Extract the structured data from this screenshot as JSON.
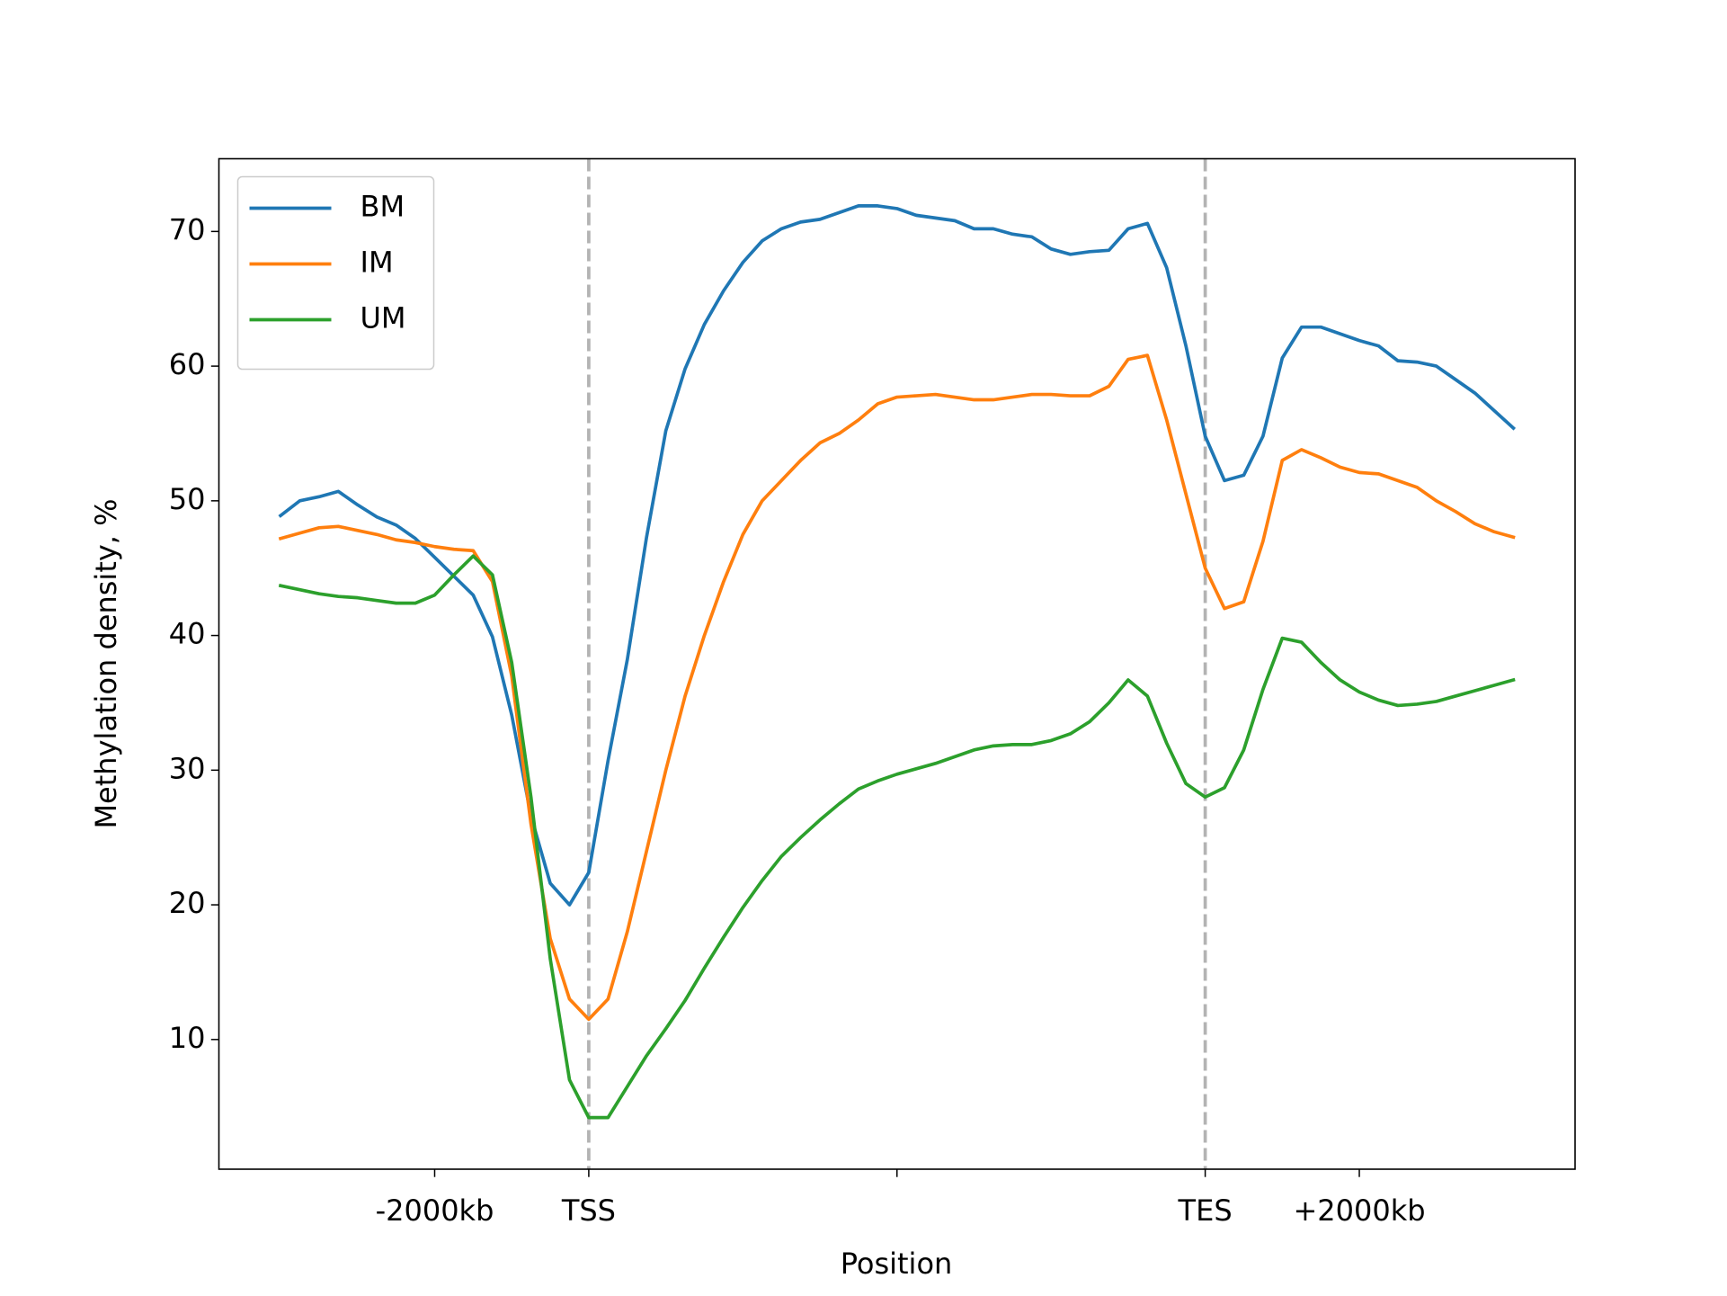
{
  "chart_data": {
    "type": "line",
    "xlabel": "Position",
    "ylabel": "Methylation density, %",
    "x": [
      -2,
      -1.875,
      -1.75,
      -1.625,
      -1.5,
      -1.375,
      -1.25,
      -1.125,
      -1,
      -0.875,
      -0.75,
      -0.625,
      -0.5,
      -0.375,
      -0.25,
      -0.125,
      0,
      0.125,
      0.25,
      0.375,
      0.5,
      0.625,
      0.75,
      0.875,
      1,
      1.125,
      1.25,
      1.375,
      1.5,
      1.625,
      1.75,
      1.875,
      2,
      2.125,
      2.25,
      2.375,
      2.5,
      2.625,
      2.75,
      2.875,
      3,
      3.125,
      3.25,
      3.375,
      3.5,
      3.625,
      3.75,
      3.875,
      4,
      4.125,
      4.25,
      4.375,
      4.5,
      4.625,
      4.75,
      4.875,
      5,
      5.125,
      5.25,
      5.375,
      5.5,
      5.625,
      5.75,
      5.875,
      6
    ],
    "series": [
      {
        "name": "BM",
        "color": "#1f77b4",
        "values": [
          48.9,
          50.0,
          50.3,
          50.7,
          49.7,
          48.8,
          48.2,
          47.2,
          45.8,
          44.4,
          43.0,
          39.9,
          34.1,
          26.6,
          21.6,
          20.0,
          22.4,
          30.7,
          38.2,
          47.3,
          55.2,
          59.8,
          63.1,
          65.6,
          67.7,
          69.3,
          70.2,
          70.7,
          70.9,
          71.4,
          71.9,
          71.9,
          71.7,
          71.2,
          71.0,
          70.8,
          70.2,
          70.2,
          69.8,
          69.6,
          68.7,
          68.3,
          68.5,
          68.6,
          70.2,
          70.6,
          67.3,
          61.5,
          54.8,
          51.5,
          51.9,
          54.8,
          60.6,
          62.9,
          62.9,
          62.4,
          61.9,
          61.5,
          60.4,
          60.3,
          60.0,
          59.0,
          58.0,
          56.7,
          55.4
        ]
      },
      {
        "name": "IM",
        "color": "#ff7f0e",
        "values": [
          47.2,
          47.6,
          48.0,
          48.1,
          47.8,
          47.5,
          47.1,
          46.9,
          46.6,
          46.4,
          46.3,
          44.0,
          37.0,
          26.0,
          17.5,
          13.0,
          11.5,
          13.0,
          18.0,
          24.0,
          30.0,
          35.5,
          40.0,
          44.0,
          47.5,
          50.0,
          51.5,
          53.0,
          54.3,
          55.0,
          56.0,
          57.2,
          57.7,
          57.8,
          57.9,
          57.7,
          57.5,
          57.5,
          57.7,
          57.9,
          57.9,
          57.8,
          57.8,
          58.5,
          60.5,
          60.8,
          56.0,
          50.5,
          45.0,
          42.0,
          42.5,
          47.0,
          53.0,
          53.8,
          53.2,
          52.5,
          52.1,
          52.0,
          51.5,
          51.0,
          50.0,
          49.2,
          48.3,
          47.7,
          47.3
        ]
      },
      {
        "name": "UM",
        "color": "#2ca02c",
        "values": [
          43.7,
          43.4,
          43.1,
          42.9,
          42.8,
          42.6,
          42.4,
          42.4,
          43.0,
          44.5,
          45.9,
          44.5,
          38.0,
          28.0,
          16.0,
          7.0,
          4.2,
          4.2,
          6.5,
          8.8,
          10.8,
          12.9,
          15.3,
          17.6,
          19.8,
          21.8,
          23.6,
          25.0,
          26.3,
          27.5,
          28.6,
          29.2,
          29.7,
          30.1,
          30.5,
          31.0,
          31.5,
          31.8,
          31.9,
          31.9,
          32.2,
          32.7,
          33.6,
          35.0,
          36.7,
          35.5,
          32.0,
          29.0,
          28.0,
          28.7,
          31.5,
          36.0,
          39.8,
          39.5,
          38.0,
          36.7,
          35.8,
          35.2,
          34.8,
          34.9,
          35.1,
          35.5,
          35.9,
          36.3,
          36.7
        ]
      }
    ],
    "xlim": [
      -2.4,
      6.4
    ],
    "xticks": [
      {
        "value": -1,
        "label": "-2000kb"
      },
      {
        "value": 0,
        "label": "TSS"
      },
      {
        "value": 2,
        "label": null
      },
      {
        "value": 4,
        "label": "TES"
      },
      {
        "value": 5,
        "label": "+2000kb"
      }
    ],
    "ylim": [
      0.37,
      75.4
    ],
    "yticks": [
      10,
      20,
      30,
      40,
      50,
      60,
      70
    ],
    "vlines": [
      0,
      4
    ],
    "vline_color": "#b3b3b3",
    "legend": "upper left",
    "grid": false
  }
}
